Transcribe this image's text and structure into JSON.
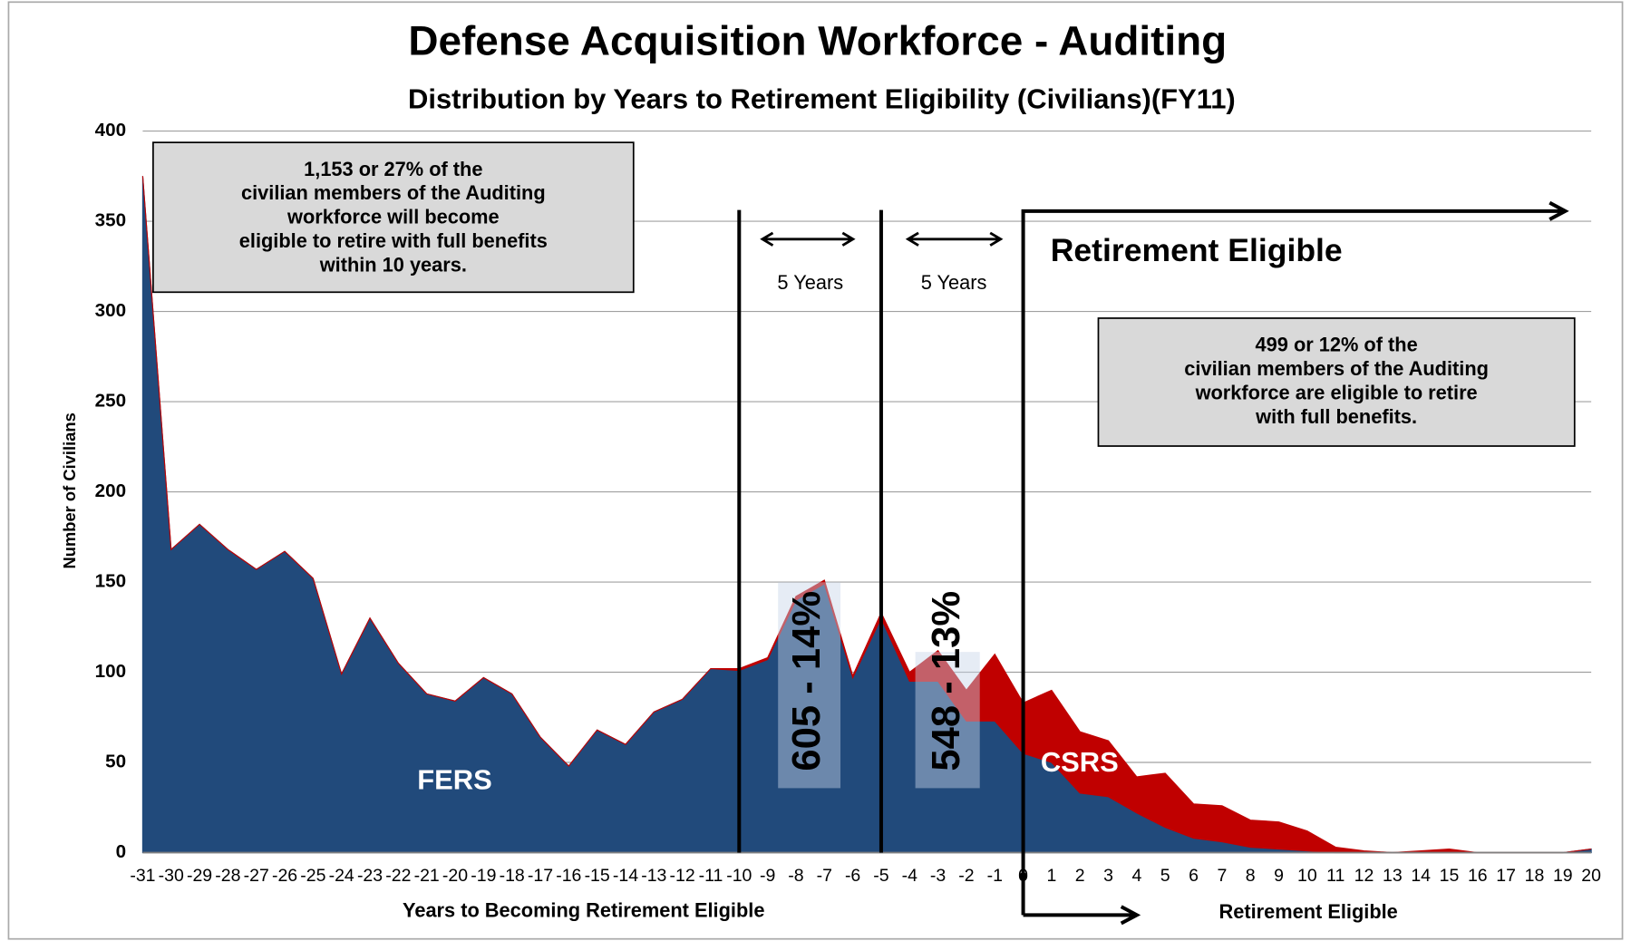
{
  "chart_data": {
    "type": "stacked_area",
    "title": "Defense Acquisition Workforce - Auditing",
    "subtitle": "Distribution by Years to Retirement Eligibility (Civilians)(FY11)",
    "x_label": "Years to Becoming Retirement Eligible",
    "x_label_right": "Retirement Eligible",
    "y_label": "Number of Civilians",
    "x": [
      -31,
      -30,
      -29,
      -28,
      -27,
      -26,
      -25,
      -24,
      -23,
      -22,
      -21,
      -20,
      -19,
      -18,
      -17,
      -16,
      -15,
      -14,
      -13,
      -12,
      -11,
      -10,
      -9,
      -8,
      -7,
      -6,
      -5,
      -4,
      -3,
      -2,
      -1,
      0,
      1,
      2,
      3,
      4,
      5,
      6,
      7,
      8,
      9,
      10,
      11,
      12,
      13,
      14,
      15,
      16,
      17,
      18,
      19,
      20
    ],
    "xlim": [
      -31,
      20
    ],
    "ylim": [
      0,
      400
    ],
    "yticks": [
      0,
      50,
      100,
      150,
      200,
      250,
      300,
      350,
      400
    ],
    "series": [
      {
        "name": "FERS",
        "color": "#214a7b",
        "values": [
          375,
          168,
          182,
          168,
          157,
          167,
          152,
          99,
          130,
          105,
          88,
          84,
          97,
          88,
          64,
          48,
          68,
          60,
          78,
          85,
          102,
          101,
          107,
          140,
          149,
          97,
          130,
          95,
          95,
          73,
          73,
          55,
          50,
          33,
          31,
          22,
          14,
          8,
          6,
          3,
          2,
          1,
          0,
          0,
          0,
          0,
          0,
          0,
          0,
          0,
          0,
          2
        ]
      },
      {
        "name": "CSRS",
        "color": "#c00000",
        "values": [
          0,
          0,
          0,
          0,
          0,
          0,
          0,
          0,
          0,
          0,
          0,
          0,
          0,
          0,
          0,
          0,
          0,
          0,
          0,
          0,
          0,
          1,
          1,
          2,
          2,
          1,
          3,
          5,
          17,
          17,
          37,
          28,
          40,
          34,
          31,
          20,
          30,
          19,
          20,
          15,
          15,
          11,
          3,
          1,
          0,
          1,
          2,
          0,
          0,
          0,
          0,
          0
        ]
      }
    ],
    "annotations": {
      "box_left": [
        "1,153 or 27% of the",
        "civilian members of the Auditing",
        "workforce will become",
        "eligible to retire with full benefits",
        "within 10 years."
      ],
      "box_right": [
        "499 or 12% of the",
        "civilian members of the Auditing",
        "workforce are eligible to retire",
        "with full benefits."
      ],
      "span_1": "5 Years",
      "span_2": "5 Years",
      "eligible_header": "Retirement Eligible",
      "count_1": "605 - 14%",
      "count_2": "548 - 13%"
    }
  }
}
